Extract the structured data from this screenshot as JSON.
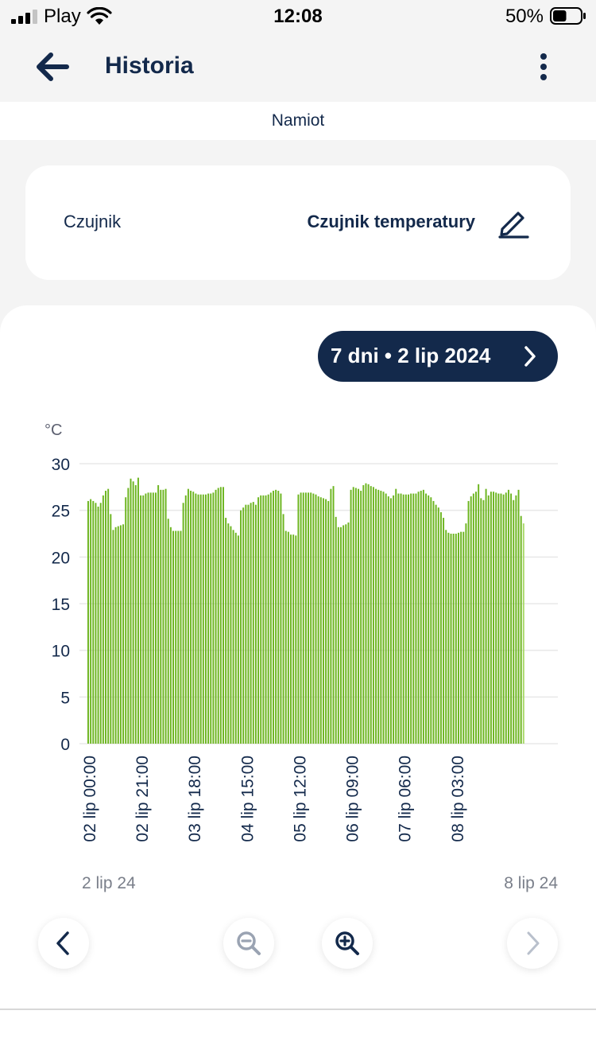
{
  "status_bar": {
    "carrier": "Play",
    "time": "12:08",
    "battery": "50%",
    "battery_level": 0.5
  },
  "nav": {
    "title": "Historia",
    "back_icon": "arrow-left-icon",
    "menu_icon": "more-vertical-icon"
  },
  "subtitle": "Namiot",
  "sensor": {
    "label": "Czujnik",
    "value": "Czujnik temperatury",
    "edit_icon": "pencil-icon"
  },
  "range_button": {
    "label": "7 dni • 2 lip 2024",
    "icon": "chevron-right-icon"
  },
  "chart_data": {
    "type": "bar",
    "unit_label": "°C",
    "ylim": [
      0,
      30
    ],
    "yticks": [
      0,
      5,
      10,
      15,
      20,
      25,
      30
    ],
    "grid": true,
    "bar_color": "#6cb51f",
    "x_tick_labels": [
      "02 lip 00:00",
      "02 lip 21:00",
      "03 lip 18:00",
      "04 lip 15:00",
      "05 lip 12:00",
      "06 lip 09:00",
      "07 lip 06:00",
      "08 lip 03:00"
    ],
    "x_tick_index": [
      0,
      21,
      42,
      63,
      84,
      105,
      126,
      147
    ],
    "start_label": "2 lip 24",
    "end_label": "8 lip 24",
    "values": [
      26.0,
      26.2,
      26.0,
      25.8,
      25.4,
      25.8,
      26.6,
      27.1,
      27.3,
      24.6,
      22.9,
      23.2,
      23.3,
      23.4,
      23.5,
      26.4,
      27.4,
      28.4,
      28.1,
      27.7,
      28.5,
      26.6,
      26.6,
      26.8,
      26.9,
      26.9,
      26.9,
      26.9,
      27.7,
      27.2,
      27.2,
      27.3,
      24.1,
      23.2,
      22.8,
      22.8,
      22.8,
      22.8,
      25.8,
      26.6,
      27.3,
      27.1,
      27.0,
      26.8,
      26.7,
      26.7,
      26.7,
      26.7,
      26.8,
      26.8,
      26.9,
      27.2,
      27.4,
      27.5,
      27.5,
      24.2,
      23.6,
      23.3,
      22.9,
      22.6,
      22.3,
      25.0,
      25.3,
      25.6,
      25.6,
      25.8,
      25.9,
      25.6,
      26.4,
      26.6,
      26.6,
      26.6,
      26.7,
      26.9,
      27.1,
      27.2,
      27.1,
      26.8,
      24.6,
      22.8,
      22.7,
      22.4,
      22.4,
      22.3,
      26.7,
      26.9,
      26.9,
      26.9,
      26.9,
      26.9,
      26.8,
      26.7,
      26.5,
      26.4,
      26.3,
      26.2,
      26.0,
      27.3,
      27.6,
      24.3,
      23.2,
      23.2,
      23.4,
      23.5,
      23.7,
      27.2,
      27.5,
      27.4,
      27.3,
      27.1,
      27.7,
      27.9,
      27.8,
      27.6,
      27.5,
      27.3,
      27.2,
      27.1,
      27.0,
      26.8,
      26.5,
      26.3,
      26.6,
      27.3,
      26.8,
      26.8,
      26.7,
      26.7,
      26.7,
      26.8,
      26.8,
      26.8,
      27.0,
      27.1,
      27.2,
      26.8,
      26.6,
      26.4,
      26.0,
      25.6,
      25.3,
      24.8,
      24.2,
      22.9,
      22.6,
      22.5,
      22.5,
      22.5,
      22.6,
      22.7,
      22.7,
      23.6,
      26.0,
      26.5,
      26.8,
      27.0,
      27.8,
      26.3,
      26.1,
      27.3,
      26.6,
      27.0,
      27.0,
      26.9,
      26.8,
      26.8,
      26.7,
      26.9,
      27.2,
      26.8,
      26.1,
      26.6,
      27.2,
      24.4,
      23.6
    ]
  },
  "controls": {
    "prev_icon": "chevron-left-icon",
    "zoom_out_icon": "zoom-out-icon",
    "zoom_in_icon": "zoom-in-icon",
    "next_icon": "chevron-right-icon"
  }
}
